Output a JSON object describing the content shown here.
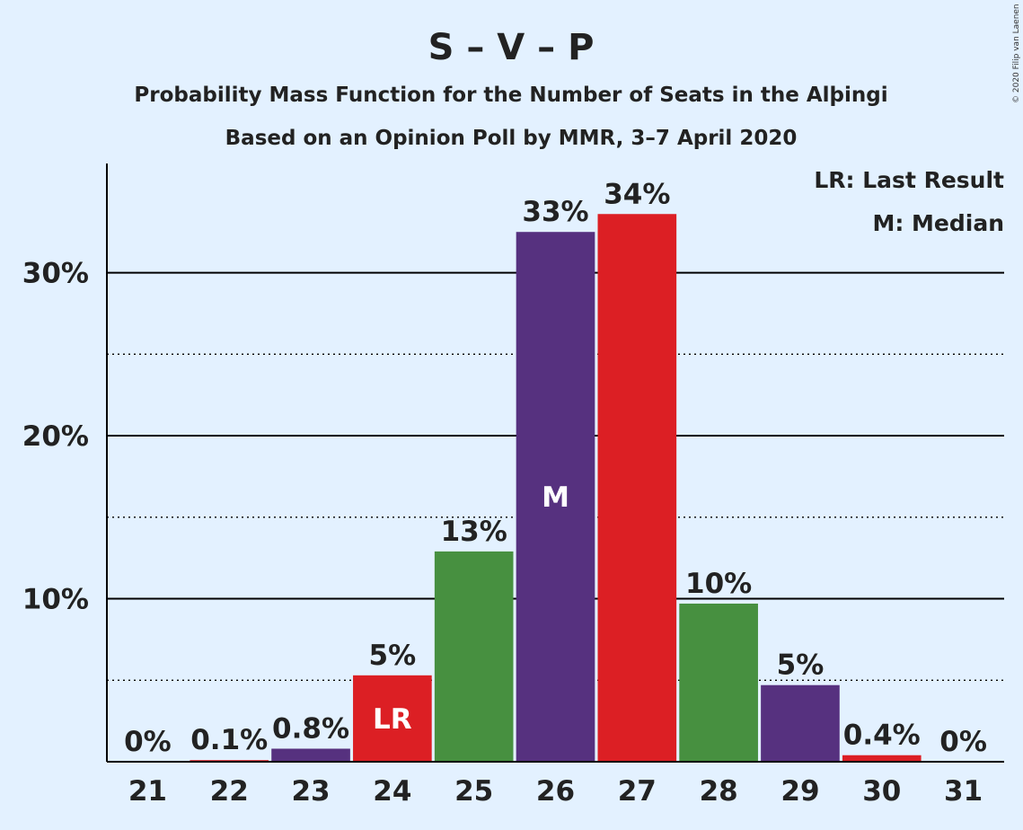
{
  "chart_data": {
    "type": "bar",
    "title": "S – V – P",
    "subtitle": "Probability Mass Function for the Number of Seats in the Alþingi",
    "subtitle2": "Based on an Opinion Poll by MMR, 3–7 April 2020",
    "copyright": "© 2020 Filip van Laenen",
    "legend": [
      "LR: Last Result",
      "M: Median"
    ],
    "legend_position": "top-right",
    "xlabel": "",
    "ylabel": "",
    "ylim": [
      0,
      36.7
    ],
    "grid": true,
    "yticks": [
      {
        "value": 10,
        "label": "10%"
      },
      {
        "value": 20,
        "label": "20%"
      },
      {
        "value": 30,
        "label": "30%"
      }
    ],
    "minor_gridlines": [
      5,
      15,
      25
    ],
    "categories": [
      "21",
      "22",
      "23",
      "24",
      "25",
      "26",
      "27",
      "28",
      "29",
      "30",
      "31"
    ],
    "values": [
      0,
      0.1,
      0.8,
      5.3,
      12.9,
      32.5,
      33.6,
      9.7,
      4.7,
      0.4,
      0
    ],
    "labels": [
      "0%",
      "0.1%",
      "0.8%",
      "5%",
      "13%",
      "33%",
      "34%",
      "10%",
      "5%",
      "0.4%",
      "0%"
    ],
    "colors": [
      "#56317f",
      "#dc1f24",
      "#56317f",
      "#dc1f24",
      "#479040",
      "#56317f",
      "#dc1f24",
      "#479040",
      "#56317f",
      "#dc1f24",
      "#479040"
    ],
    "markers": [
      {
        "index": 3,
        "text": "LR"
      },
      {
        "index": 5,
        "text": "M"
      }
    ]
  }
}
